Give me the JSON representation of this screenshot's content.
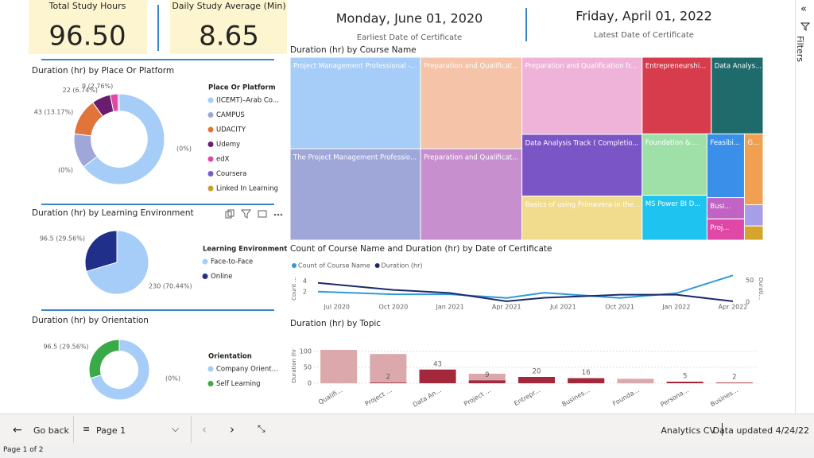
{
  "cards": [
    {
      "label": "Total Study Hours",
      "value": "96.50"
    },
    {
      "label": "Daily Study Average (Min)",
      "value": "8.65"
    }
  ],
  "dates": [
    {
      "date": "Monday, June 01, 2020",
      "label": "Earliest Date of Certificate"
    },
    {
      "date": "Friday, April 01, 2022",
      "label": "Latest Date of Certificate"
    }
  ],
  "chart_data": [
    {
      "type": "donut",
      "title": "Duration (hr) by Place Or Platform",
      "legend_title": "Place Or Platform",
      "categories": [
        "(ICEMT)–Arab Co...",
        "CAMPUS",
        "UDACITY",
        "Udemy",
        "edX",
        "Coursera",
        "Linked In Learning"
      ],
      "values": [
        210.5,
        40.5,
        43,
        22,
        9,
        1.5,
        0
      ],
      "colors": [
        "#a6cdf7",
        "#9fa7d9",
        "#e0743a",
        "#6a1d6e",
        "#e048a8",
        "#7b5cc7",
        "#c9a227"
      ],
      "value_labels": [
        null,
        null,
        "43 (13.17%)",
        "22 (6.74%)",
        "9 (2.76%)",
        null,
        null
      ],
      "annotations": [
        "(0%)",
        "(0%)"
      ]
    },
    {
      "type": "pie",
      "title": "Duration (hr) by Learning Environment",
      "legend_title": "Learning Environment",
      "categories": [
        "Face-to-Face",
        "Online"
      ],
      "values": [
        230,
        96.5
      ],
      "colors": [
        "#a6cdf7",
        "#1f2f8a"
      ],
      "value_labels": [
        "230 (70.44%)",
        "96.5 (29.56%)"
      ]
    },
    {
      "type": "donut",
      "title": "Duration (hr) by Orientation",
      "legend_title": "Orientation",
      "categories": [
        "Company Orient...",
        "Self Learning"
      ],
      "values": [
        230,
        96.5
      ],
      "colors": [
        "#a6cdf7",
        "#3aaa48"
      ],
      "value_labels": [
        null,
        "96.5 (29.56%)"
      ],
      "annotations": [
        "(0%)"
      ]
    },
    {
      "type": "treemap",
      "title": "Duration (hr) by Course Name",
      "categories": [
        "Project Management Professional -...",
        "The Project Management Professio...",
        "Preparation and Qualificat...",
        "Preparation and Qualificat...",
        "Preparation and Qualification fr...",
        "Data Analysis Track ( Completio...",
        "Basics of using Primavera in the...",
        "Entrepreneurshi...",
        "Foundation & ...",
        "MS Power BI D...",
        "Data Analys...",
        "Feasibi...",
        "G...",
        "Busi...",
        "Proj...",
        null,
        null
      ],
      "values": [
        45,
        45,
        35,
        35,
        35,
        28,
        20,
        20,
        15,
        11,
        15,
        9,
        5,
        3,
        3,
        1.5,
        1
      ],
      "colors": [
        "#a6cdf7",
        "#9fa7d9",
        "#f4c3a8",
        "#c88fcf",
        "#efb3d9",
        "#7a55c6",
        "#f0dc8c",
        "#d63c4c",
        "#9fe0a8",
        "#1ec3ef",
        "#1f6b6b",
        "#3a8fe8",
        "#f0a050",
        "#c063c4",
        "#e048a8",
        "#a79ee8",
        "#d4a52a"
      ]
    },
    {
      "type": "line",
      "title": "Count of Course Name and Duration (hr) by Date of Certificate",
      "ylabel": "Count ...",
      "y2label": "Durati...",
      "x": [
        "2020-06",
        "2020-10",
        "2021-01",
        "2021-04",
        "2021-06",
        "2021-10",
        "2022-01",
        "2022-04"
      ],
      "series": [
        {
          "name": "Count of Course Name",
          "color": "#2f9bd8",
          "values": [
            2,
            1.5,
            1.5,
            0.8,
            1.8,
            0.8,
            1.7,
            5.1
          ]
        },
        {
          "name": "Duration (hr)",
          "color": "#1b2a6b",
          "axis": "y2",
          "values": [
            44,
            28,
            21,
            2,
            10,
            17,
            17,
            2
          ]
        }
      ],
      "xlim": [
        "2020-06",
        "2022-04"
      ],
      "xticks": [
        {
          "value": "2020-07",
          "label": "Jul 2020"
        },
        {
          "value": "2020-10",
          "label": "Oct 2020"
        },
        {
          "value": "2021-01",
          "label": "Jan 2021"
        },
        {
          "value": "2021-04",
          "label": "Apr 2021"
        },
        {
          "value": "2021-07",
          "label": "Jul 2021"
        },
        {
          "value": "2021-10",
          "label": "Oct 2021"
        },
        {
          "value": "2022-01",
          "label": "Jan 2022"
        },
        {
          "value": "2022-04",
          "label": "Apr 2022"
        }
      ],
      "ylim": [
        0,
        5
      ],
      "yticks": [
        2,
        4
      ],
      "y2lim": [
        0,
        60
      ],
      "y2ticks": [
        0,
        50
      ]
    },
    {
      "type": "bar",
      "title": "Duration (hr) by Topic",
      "ylabel": "Duration (hr",
      "categories": [
        "Qualifi...",
        "Project ...",
        "Data An...",
        "Project ...",
        "Entrepr...",
        "Busines...",
        "Founda...",
        "Persona...",
        "Busines..."
      ],
      "series": [
        {
          "color": "#dba8ac",
          "values": [
            105,
            92,
            43,
            30,
            20,
            16,
            14,
            5,
            2
          ]
        },
        {
          "color": "#a3283b",
          "data_labels": true,
          "values": [
            null,
            2,
            43,
            9,
            20,
            16,
            null,
            5,
            2
          ]
        }
      ],
      "ylim": [
        0,
        110
      ],
      "yticks": [
        0,
        50,
        100
      ],
      "grid": true
    }
  ],
  "filters_pane": "Filters",
  "footer": {
    "back": "Go back",
    "page": "Page 1",
    "report": "Analytics CV",
    "updated": "Data updated 4/24/22",
    "status": "Page 1 of 2"
  }
}
